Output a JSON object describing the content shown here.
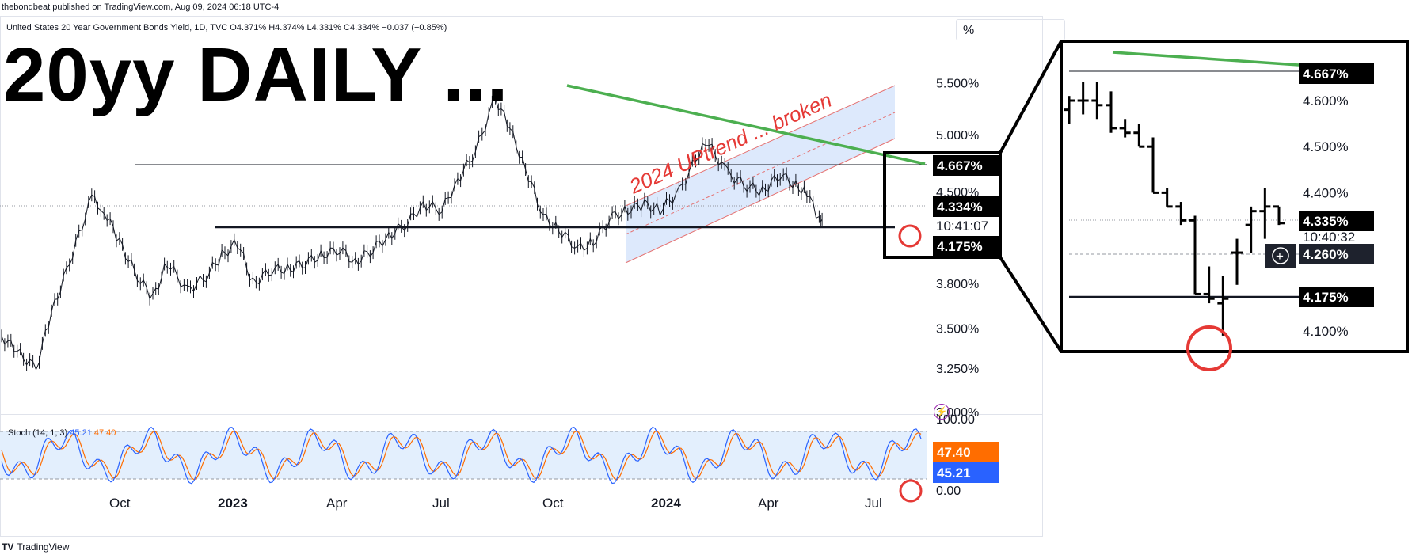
{
  "header": {
    "published": "thebondbeat published on TradingView.com, Aug 09, 2024 06:18 UTC-4",
    "symbol_line": "United States 20 Year Government Bonds Yield, 1D, TVC  O4.371%  H4.374%  L4.331%  C4.334%  −0.037 (−0.85%)",
    "big_title": "20yy DAILY ...",
    "scale_button": "%"
  },
  "footer": {
    "brand": "TradingView",
    "logo": "TV"
  },
  "annotation": {
    "channel_label": "2024 UPtrend ... broken"
  },
  "indicator": {
    "label_prefix": "Stoch (14, 1, 3)",
    "k_value": "45.21",
    "d_value": "47.40",
    "tick_labels": [
      "100.00",
      "0.00"
    ],
    "k_badge": "45.21",
    "d_badge": "47.40",
    "colors": {
      "k": "#2962ff",
      "d": "#ff6d00",
      "band": "#e3effd"
    }
  },
  "chart_data": [
    {
      "type": "line",
      "subtype": "ohlc-bars",
      "title": "United States 20 Year Government Bonds Yield, 1D, TVC",
      "ohlc_last": {
        "open": 4.371,
        "high": 4.374,
        "low": 4.331,
        "close": 4.334,
        "change": -0.037,
        "change_pct": -0.85
      },
      "x_ticks": [
        "Oct",
        "2023",
        "Apr",
        "Jul",
        "Oct",
        "2024",
        "Apr",
        "Jul"
      ],
      "y_ticks": [
        "5.500%",
        "5.000%",
        "4.500%",
        "4.100%",
        "3.800%",
        "3.500%",
        "3.250%",
        "3.000%"
      ],
      "ylim": [
        3.0,
        5.6
      ],
      "yscale": "log",
      "series": [
        {
          "x": [
            "2022-08-01",
            "2022-08-15",
            "2022-09-01",
            "2022-09-15",
            "2022-10-01",
            "2022-10-21",
            "2022-11-01",
            "2022-11-15",
            "2022-12-01",
            "2022-12-15",
            "2022-12-28",
            "2023-01-15",
            "2023-02-01",
            "2023-02-15",
            "2023-03-01",
            "2023-03-15",
            "2023-04-01",
            "2023-04-15",
            "2023-05-01",
            "2023-05-15",
            "2023-06-01",
            "2023-06-15",
            "2023-07-01",
            "2023-07-15",
            "2023-08-01",
            "2023-08-15",
            "2023-09-01",
            "2023-09-15",
            "2023-10-01",
            "2023-10-19",
            "2023-11-01",
            "2023-11-15",
            "2023-12-01",
            "2023-12-15",
            "2024-01-01",
            "2024-01-15",
            "2024-02-01",
            "2024-02-15",
            "2024-03-01",
            "2024-03-15",
            "2024-04-01",
            "2024-04-25",
            "2024-05-15",
            "2024-06-01",
            "2024-06-15",
            "2024-07-01",
            "2024-07-15",
            "2024-07-25",
            "2024-08-05",
            "2024-08-09"
          ],
          "values": [
            3.45,
            3.35,
            3.25,
            3.6,
            3.95,
            4.45,
            4.35,
            4.1,
            3.85,
            3.7,
            3.95,
            3.75,
            3.85,
            4.0,
            4.1,
            3.8,
            3.9,
            3.9,
            3.95,
            4.0,
            4.05,
            3.95,
            4.05,
            4.15,
            4.25,
            4.4,
            4.35,
            4.6,
            4.85,
            5.35,
            5.05,
            4.7,
            4.3,
            4.2,
            4.05,
            4.1,
            4.3,
            4.35,
            4.4,
            4.35,
            4.5,
            4.95,
            4.65,
            4.55,
            4.5,
            4.65,
            4.55,
            4.5,
            4.26,
            4.334
          ]
        }
      ],
      "levels": [
        {
          "name": "resistance",
          "value": 4.667
        },
        {
          "name": "support",
          "value": 4.175
        },
        {
          "name": "last",
          "value": 4.334
        }
      ],
      "price_badges": [
        "4.667%",
        "4.334%",
        "4.175%"
      ],
      "countdown": "10:41:07",
      "colors": {
        "downtrend": "#4caf50",
        "channel": "#cfe0fb",
        "annotation": "#e53935",
        "bar": "#131722"
      }
    },
    {
      "type": "line",
      "subtype": "ohlc-bars-zoom",
      "y_ticks": [
        "4.600%",
        "4.500%",
        "4.400%",
        "4.100%"
      ],
      "ylim": [
        4.06,
        4.7
      ],
      "series": [
        {
          "x": [
            "2024-07-19",
            "2024-07-22",
            "2024-07-23",
            "2024-07-24",
            "2024-07-25",
            "2024-07-26",
            "2024-07-29",
            "2024-07-30",
            "2024-07-31",
            "2024-08-01",
            "2024-08-02",
            "2024-08-05",
            "2024-08-06",
            "2024-08-07",
            "2024-08-08",
            "2024-08-09"
          ],
          "open": [
            4.58,
            4.6,
            4.6,
            4.59,
            4.54,
            4.53,
            4.5,
            4.4,
            4.37,
            4.34,
            4.18,
            4.16,
            4.27,
            4.33,
            4.36,
            4.37
          ],
          "high": [
            4.61,
            4.64,
            4.64,
            4.62,
            4.56,
            4.55,
            4.52,
            4.41,
            4.38,
            4.35,
            4.24,
            4.22,
            4.3,
            4.37,
            4.41,
            4.37
          ],
          "low": [
            4.55,
            4.57,
            4.56,
            4.53,
            4.52,
            4.5,
            4.4,
            4.37,
            4.33,
            4.18,
            4.16,
            4.09,
            4.2,
            4.27,
            4.3,
            4.33
          ],
          "close": [
            4.6,
            4.6,
            4.59,
            4.54,
            4.53,
            4.5,
            4.4,
            4.37,
            4.34,
            4.18,
            4.17,
            4.17,
            4.27,
            4.36,
            4.37,
            4.334
          ]
        }
      ],
      "price_badges": [
        "4.667%",
        "4.335%",
        "4.260%",
        "4.175%"
      ],
      "countdown": "10:40:32"
    }
  ]
}
